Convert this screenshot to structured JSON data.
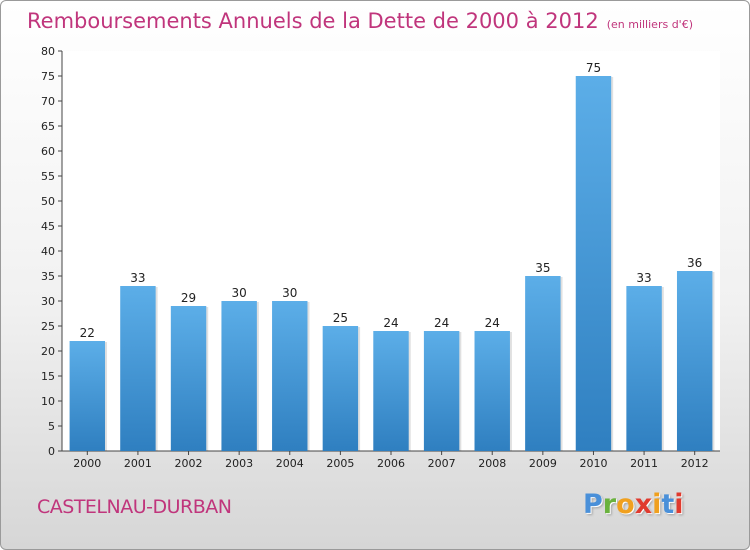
{
  "header": {
    "title": "Remboursements Annuels de la Dette de 2000 à 2012",
    "unit": "(en milliers d'€)"
  },
  "footer": {
    "town": "CASTELNAU-DURBAN",
    "logo_letters": [
      "P",
      "r",
      "o",
      "x",
      "i",
      "t",
      "i"
    ],
    "logo_colors": [
      "#4a90d9",
      "#6ab23e",
      "#f0a01e",
      "#e03a2e",
      "#f0a01e",
      "#4a90d9",
      "#e03a2e"
    ]
  },
  "colors": {
    "bar_top": "#5caee8",
    "bar_bottom": "#2f7fc0",
    "axis": "#444444",
    "grid": "#dddddd",
    "title": "#c0357c"
  },
  "chart_data": {
    "type": "bar",
    "title": "Remboursements Annuels de la Dette de 2000 à 2012",
    "subtitle": "(en milliers d'€)",
    "xlabel": "",
    "ylabel": "",
    "categories": [
      "2000",
      "2001",
      "2002",
      "2003",
      "2004",
      "2005",
      "2006",
      "2007",
      "2008",
      "2009",
      "2010",
      "2011",
      "2012"
    ],
    "values": [
      22,
      33,
      29,
      30,
      30,
      25,
      24,
      24,
      24,
      35,
      75,
      33,
      36
    ],
    "ylim": [
      0,
      80
    ],
    "yticks": [
      0,
      5,
      10,
      15,
      20,
      25,
      30,
      35,
      40,
      45,
      50,
      55,
      60,
      65,
      70,
      75,
      80
    ],
    "grid": false,
    "legend": "none"
  }
}
